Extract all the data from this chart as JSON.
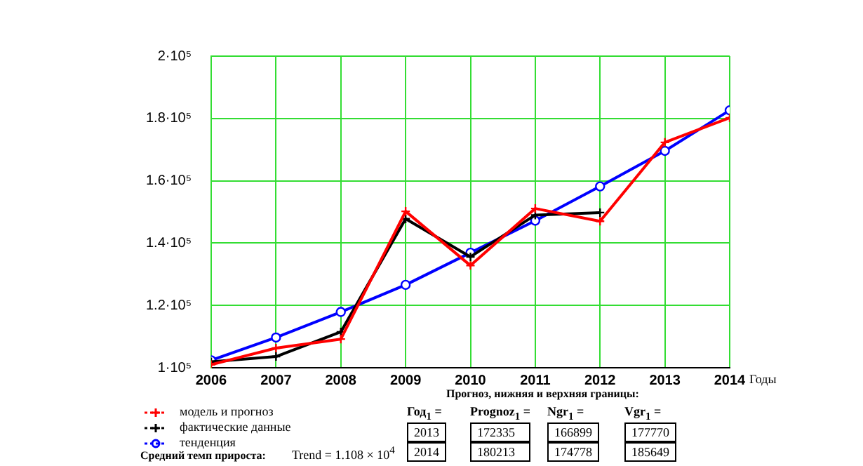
{
  "chart_data": {
    "type": "line",
    "xlabel": "Годы",
    "x": [
      2006,
      2007,
      2008,
      2009,
      2010,
      2011,
      2012,
      2013,
      2014
    ],
    "xlim": [
      2006,
      2014
    ],
    "xticks": [
      2006,
      2007,
      2008,
      2009,
      2010,
      2011,
      2012,
      2013,
      2014
    ],
    "ylim": [
      100000,
      200000
    ],
    "yticks": [
      {
        "value": 100000,
        "label": "1·10⁵"
      },
      {
        "value": 120000,
        "label": "1.2·10⁵"
      },
      {
        "value": 140000,
        "label": "1.4·10⁵"
      },
      {
        "value": 160000,
        "label": "1.6·10⁵"
      },
      {
        "value": 180000,
        "label": "1.8·10⁵"
      },
      {
        "value": 200000,
        "label": "2·10⁵"
      }
    ],
    "grid": true,
    "legend": "bottom left",
    "series": [
      {
        "name": "модель и прогноз",
        "color": "#ff0000",
        "marker": "cross",
        "values": [
          101000,
          106300,
          109200,
          150200,
          132800,
          151100,
          147000,
          172335,
          180213
        ]
      },
      {
        "name": "фактические данные",
        "color": "#000000",
        "marker": "cross",
        "values": [
          101900,
          103600,
          111500,
          147800,
          135600,
          149000,
          149800,
          null,
          null
        ]
      },
      {
        "name": "тенденция",
        "color": "#0000ff",
        "marker": "circle",
        "values": [
          102400,
          109700,
          117900,
          126600,
          136900,
          147200,
          158200,
          169600,
          182600
        ]
      }
    ],
    "annotations": [
      "Прогноз, нижняя и верхняя границы:",
      "Год$_{1}$ =",
      "Prognoz$_{1}$ =",
      "Ngr$_{1}$ =",
      "Vgr$_{1}$ =",
      "2013",
      "172335",
      "166899",
      "177770",
      "2014",
      "180213",
      "174778",
      "185649",
      "Средний темп прироста:",
      "Trend = 1.108 × 10$^{4}$"
    ]
  }
}
